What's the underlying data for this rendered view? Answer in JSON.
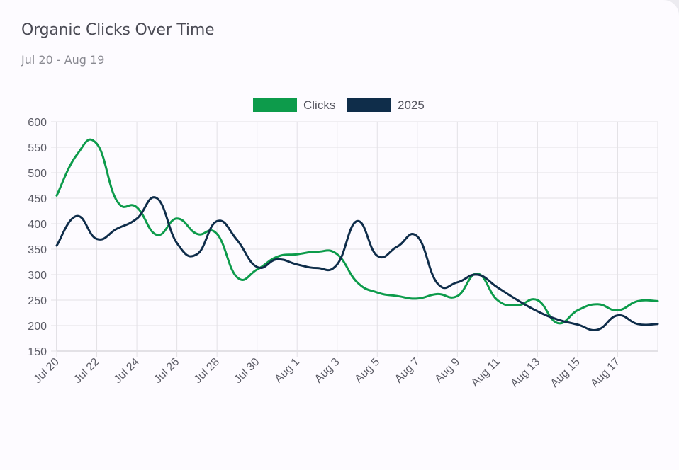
{
  "card": {
    "title": "Organic Clicks Over Time",
    "subtitle": "Jul 20 - Aug 19"
  },
  "colors": {
    "clicks": "#0d9b4b",
    "year2025": "#0f2d4a",
    "grid": "#e3e1e6",
    "axis": "#c9c7cd"
  },
  "chart_data": {
    "type": "line",
    "title": "",
    "xlabel": "",
    "ylabel": "",
    "ylim": [
      150,
      600
    ],
    "yticks": [
      150,
      200,
      250,
      300,
      350,
      400,
      450,
      500,
      550,
      600
    ],
    "x": [
      "Jul 20",
      "Jul 21",
      "Jul 22",
      "Jul 23",
      "Jul 24",
      "Jul 25",
      "Jul 26",
      "Jul 27",
      "Jul 28",
      "Jul 29",
      "Jul 30",
      "Jul 31",
      "Aug 1",
      "Aug 2",
      "Aug 3",
      "Aug 4",
      "Aug 5",
      "Aug 6",
      "Aug 7",
      "Aug 8",
      "Aug 9",
      "Aug 10",
      "Aug 11",
      "Aug 12",
      "Aug 13",
      "Aug 14",
      "Aug 15",
      "Aug 16",
      "Aug 17",
      "Aug 18",
      "Aug 19"
    ],
    "x_tick_labels": [
      "Jul 20",
      "Jul 22",
      "Jul 24",
      "Jul 26",
      "Jul 28",
      "Jul 30",
      "Aug 1",
      "Aug 3",
      "Aug 5",
      "Aug 7",
      "Aug 9",
      "Aug 11",
      "Aug 13",
      "Aug 15",
      "Aug 17"
    ],
    "grid": true,
    "legend_position": "top-center",
    "series": [
      {
        "name": "Clicks",
        "values": [
          455,
          535,
          557,
          445,
          432,
          378,
          410,
          380,
          380,
          295,
          310,
          335,
          340,
          345,
          340,
          285,
          265,
          258,
          253,
          262,
          258,
          302,
          250,
          240,
          250,
          205,
          230,
          242,
          230,
          248,
          248
        ]
      },
      {
        "name": "2025",
        "values": [
          357,
          415,
          370,
          390,
          410,
          450,
          362,
          340,
          405,
          368,
          315,
          330,
          320,
          313,
          320,
          405,
          337,
          355,
          375,
          283,
          285,
          300,
          275,
          250,
          228,
          212,
          202,
          192,
          220,
          203,
          203
        ]
      }
    ]
  }
}
